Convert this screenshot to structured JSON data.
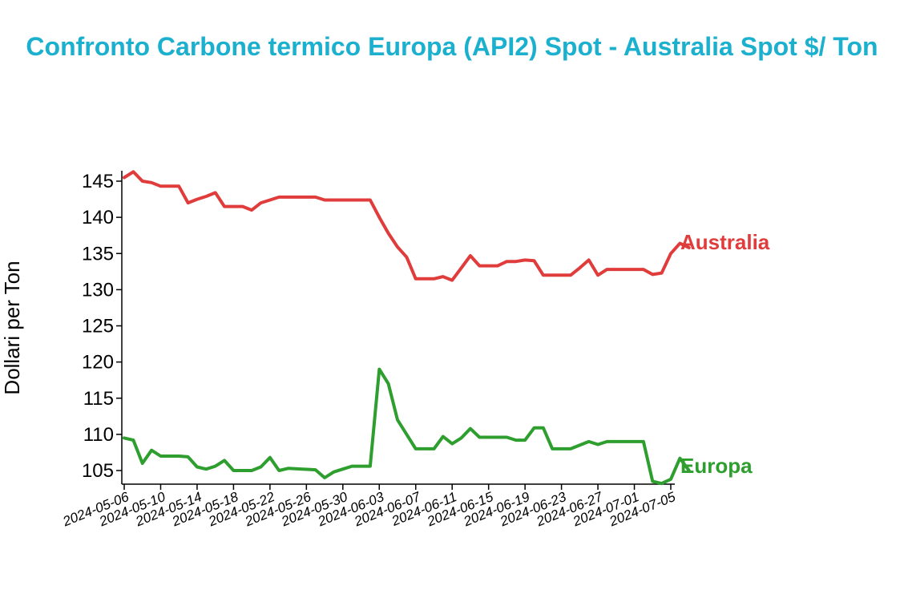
{
  "chart_data": {
    "type": "line",
    "title": "Confronto Carbone termico Europa (API2) Spot - Australia Spot $/ Ton",
    "xlabel": "",
    "ylabel": "Dollari per Ton",
    "x_tick_labels": [
      "2024-05-06",
      "2024-05-10",
      "2024-05-14",
      "2024-05-18",
      "2024-05-22",
      "2024-05-26",
      "2024-05-30",
      "2024-06-03",
      "2024-06-07",
      "2024-06-11",
      "2024-06-15",
      "2024-06-19",
      "2024-06-23",
      "2024-06-27",
      "2024-07-01",
      "2024-07-05"
    ],
    "y_ticks": [
      105,
      110,
      115,
      120,
      125,
      130,
      135,
      140,
      145
    ],
    "xlim": [
      "2024-05-06",
      "2024-07-05"
    ],
    "ylim": [
      103.2,
      146.4
    ],
    "grid": false,
    "legend": "none",
    "series": [
      {
        "name": "Australia",
        "color": "#e03c3c",
        "points": [
          [
            "2024-05-06",
            145.5
          ],
          [
            "2024-05-07",
            146.3
          ],
          [
            "2024-05-08",
            145.0
          ],
          [
            "2024-05-09",
            144.8
          ],
          [
            "2024-05-10",
            144.3
          ],
          [
            "2024-05-12",
            144.3
          ],
          [
            "2024-05-13",
            142.0
          ],
          [
            "2024-05-14",
            142.5
          ],
          [
            "2024-05-15",
            142.9
          ],
          [
            "2024-05-16",
            143.4
          ],
          [
            "2024-05-17",
            141.5
          ],
          [
            "2024-05-19",
            141.5
          ],
          [
            "2024-05-20",
            141.0
          ],
          [
            "2024-05-21",
            142.0
          ],
          [
            "2024-05-22",
            142.4
          ],
          [
            "2024-05-23",
            142.8
          ],
          [
            "2024-05-27",
            142.8
          ],
          [
            "2024-05-28",
            142.4
          ],
          [
            "2024-06-02",
            142.4
          ],
          [
            "2024-06-03",
            140.0
          ],
          [
            "2024-06-04",
            137.8
          ],
          [
            "2024-06-05",
            135.9
          ],
          [
            "2024-06-06",
            134.5
          ],
          [
            "2024-06-07",
            131.5
          ],
          [
            "2024-06-09",
            131.5
          ],
          [
            "2024-06-10",
            131.8
          ],
          [
            "2024-06-11",
            131.3
          ],
          [
            "2024-06-12",
            133.0
          ],
          [
            "2024-06-13",
            134.7
          ],
          [
            "2024-06-14",
            133.3
          ],
          [
            "2024-06-16",
            133.3
          ],
          [
            "2024-06-17",
            133.9
          ],
          [
            "2024-06-18",
            133.9
          ],
          [
            "2024-06-19",
            134.1
          ],
          [
            "2024-06-20",
            134.0
          ],
          [
            "2024-06-21",
            132.0
          ],
          [
            "2024-06-24",
            132.0
          ],
          [
            "2024-06-25",
            133.0
          ],
          [
            "2024-06-26",
            134.1
          ],
          [
            "2024-06-27",
            132.0
          ],
          [
            "2024-06-28",
            132.8
          ],
          [
            "2024-07-02",
            132.8
          ],
          [
            "2024-07-03",
            132.1
          ],
          [
            "2024-07-04",
            132.3
          ],
          [
            "2024-07-05",
            135.0
          ],
          [
            "2024-07-06",
            136.4
          ],
          [
            "2024-07-07",
            135.8
          ]
        ]
      },
      {
        "name": "Europa",
        "color": "#2e9e2e",
        "points": [
          [
            "2024-05-06",
            109.5
          ],
          [
            "2024-05-07",
            109.2
          ],
          [
            "2024-05-08",
            106.0
          ],
          [
            "2024-05-09",
            107.8
          ],
          [
            "2024-05-10",
            107.0
          ],
          [
            "2024-05-12",
            107.0
          ],
          [
            "2024-05-13",
            106.9
          ],
          [
            "2024-05-14",
            105.5
          ],
          [
            "2024-05-15",
            105.2
          ],
          [
            "2024-05-16",
            105.6
          ],
          [
            "2024-05-17",
            106.4
          ],
          [
            "2024-05-18",
            105.0
          ],
          [
            "2024-05-20",
            105.0
          ],
          [
            "2024-05-21",
            105.5
          ],
          [
            "2024-05-22",
            106.8
          ],
          [
            "2024-05-23",
            105.0
          ],
          [
            "2024-05-24",
            105.3
          ],
          [
            "2024-05-27",
            105.1
          ],
          [
            "2024-05-28",
            104.0
          ],
          [
            "2024-05-29",
            104.8
          ],
          [
            "2024-05-30",
            105.2
          ],
          [
            "2024-05-31",
            105.6
          ],
          [
            "2024-06-02",
            105.6
          ],
          [
            "2024-06-03",
            119.0
          ],
          [
            "2024-06-04",
            117.0
          ],
          [
            "2024-06-05",
            112.0
          ],
          [
            "2024-06-06",
            110.0
          ],
          [
            "2024-06-07",
            108.0
          ],
          [
            "2024-06-09",
            108.0
          ],
          [
            "2024-06-10",
            109.7
          ],
          [
            "2024-06-11",
            108.7
          ],
          [
            "2024-06-12",
            109.5
          ],
          [
            "2024-06-13",
            110.8
          ],
          [
            "2024-06-14",
            109.6
          ],
          [
            "2024-06-17",
            109.6
          ],
          [
            "2024-06-18",
            109.2
          ],
          [
            "2024-06-19",
            109.2
          ],
          [
            "2024-06-20",
            110.9
          ],
          [
            "2024-06-21",
            110.9
          ],
          [
            "2024-06-22",
            108.0
          ],
          [
            "2024-06-24",
            108.0
          ],
          [
            "2024-06-25",
            108.5
          ],
          [
            "2024-06-26",
            109.0
          ],
          [
            "2024-06-27",
            108.6
          ],
          [
            "2024-06-28",
            109.0
          ],
          [
            "2024-07-02",
            109.0
          ],
          [
            "2024-07-03",
            103.5
          ],
          [
            "2024-07-04",
            103.2
          ],
          [
            "2024-07-05",
            103.8
          ],
          [
            "2024-07-06",
            106.7
          ],
          [
            "2024-07-07",
            105.0
          ]
        ]
      }
    ]
  }
}
